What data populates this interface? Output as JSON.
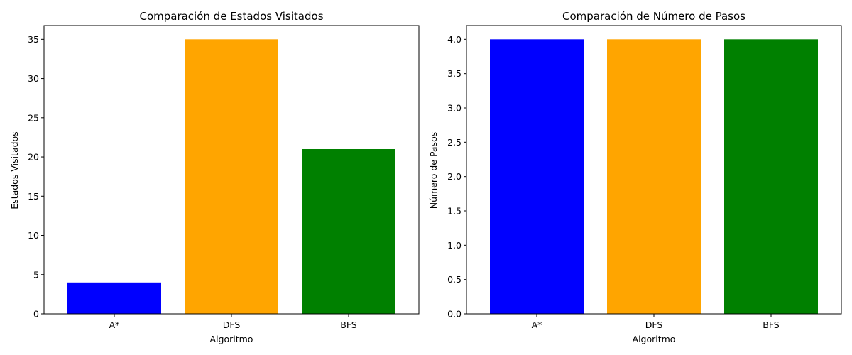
{
  "chart_data": [
    {
      "type": "bar",
      "title": "Comparación de Estados Visitados",
      "xlabel": "Algoritmo",
      "ylabel": "Estados Visitados",
      "categories": [
        "A*",
        "DFS",
        "BFS"
      ],
      "values": [
        4,
        35,
        21
      ],
      "colors": [
        "#0000ff",
        "#ffa500",
        "#008000"
      ],
      "ylim": [
        0,
        36.75
      ],
      "yticks": [
        0,
        5,
        10,
        15,
        20,
        25,
        30,
        35
      ],
      "ytick_labels": [
        "0",
        "5",
        "10",
        "15",
        "20",
        "25",
        "30",
        "35"
      ],
      "grid": false
    },
    {
      "type": "bar",
      "title": "Comparación de Número de Pasos",
      "xlabel": "Algoritmo",
      "ylabel": "Número de Pasos",
      "categories": [
        "A*",
        "DFS",
        "BFS"
      ],
      "values": [
        4,
        4,
        4
      ],
      "colors": [
        "#0000ff",
        "#ffa500",
        "#008000"
      ],
      "ylim": [
        0,
        4.2
      ],
      "yticks": [
        0,
        0.5,
        1,
        1.5,
        2,
        2.5,
        3,
        3.5,
        4
      ],
      "ytick_labels": [
        "0.0",
        "0.5",
        "1.0",
        "1.5",
        "2.0",
        "2.5",
        "3.0",
        "3.5",
        "4.0"
      ],
      "grid": false
    }
  ]
}
